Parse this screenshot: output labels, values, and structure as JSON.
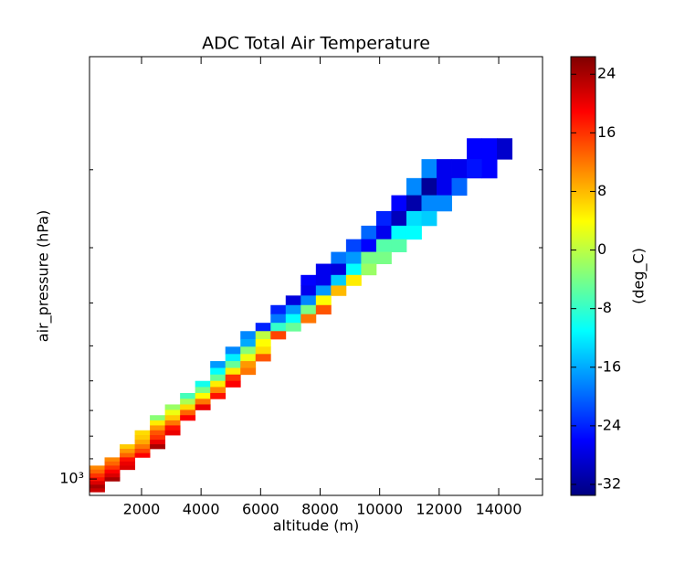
{
  "chart_data": {
    "type": "hist2d",
    "title": "ADC Total Air Temperature",
    "xlabel": "altitude (m)",
    "ylabel": "air_pressure (hPa)",
    "colorbar_label": "(deg_C)",
    "colormap": "jet",
    "clim": [
      -33.5,
      26.4
    ],
    "cticks": [
      -32,
      -24,
      -16,
      -8,
      0,
      8,
      16,
      24
    ],
    "xlim": [
      252,
      15472
    ],
    "xticks": [
      2000,
      4000,
      6000,
      8000,
      10000,
      12000,
      14000
    ],
    "ylim": [
      1089,
      111
    ],
    "yscale": "log",
    "yticks": [
      {
        "value": 1000,
        "label": "10³"
      }
    ],
    "yminorticks": [
      900,
      800,
      700,
      600,
      500,
      400,
      300,
      200
    ],
    "cell_size": [
      507,
      19.56
    ],
    "cells": [
      [
        13180.5,
        179.5,
        -26
      ],
      [
        13687.5,
        179.5,
        -26
      ],
      [
        14194.5,
        179.5,
        -29
      ],
      [
        11659.5,
        199,
        -18
      ],
      [
        12166.5,
        199,
        -27
      ],
      [
        12673.5,
        199,
        -27
      ],
      [
        13180.5,
        199,
        -25
      ],
      [
        13687.5,
        199,
        -26
      ],
      [
        11152.5,
        218.6,
        -18
      ],
      [
        11659.5,
        218.6,
        -32
      ],
      [
        12166.5,
        218.6,
        -27
      ],
      [
        12673.5,
        218.6,
        -20
      ],
      [
        10645.5,
        238.1,
        -26
      ],
      [
        11152.5,
        238.1,
        -31
      ],
      [
        11659.5,
        238.1,
        -18
      ],
      [
        12166.5,
        238.1,
        -18
      ],
      [
        10138.5,
        257.7,
        -24
      ],
      [
        10645.5,
        257.7,
        -30
      ],
      [
        11152.5,
        257.7,
        -13
      ],
      [
        11659.5,
        257.7,
        -14
      ],
      [
        9631.5,
        277.3,
        -20
      ],
      [
        10138.5,
        277.3,
        -27
      ],
      [
        10645.5,
        277.3,
        -11
      ],
      [
        11152.5,
        277.3,
        -11
      ],
      [
        9124.5,
        296.8,
        -22
      ],
      [
        9631.5,
        296.8,
        -26
      ],
      [
        10138.5,
        296.8,
        -6
      ],
      [
        10645.5,
        296.8,
        -6
      ],
      [
        8617.5,
        316.4,
        -19
      ],
      [
        9124.5,
        316.4,
        -17
      ],
      [
        9631.5,
        316.4,
        -4
      ],
      [
        10138.5,
        316.4,
        -4
      ],
      [
        8110.5,
        335.9,
        -27
      ],
      [
        8617.5,
        335.9,
        -28
      ],
      [
        9124.5,
        335.9,
        -11
      ],
      [
        9631.5,
        335.9,
        -2
      ],
      [
        7603.5,
        355.5,
        -26
      ],
      [
        8110.5,
        355.5,
        -27
      ],
      [
        8617.5,
        355.5,
        -14
      ],
      [
        9124.5,
        355.5,
        5
      ],
      [
        7603.5,
        375.1,
        -27
      ],
      [
        8110.5,
        375.1,
        -17
      ],
      [
        8617.5,
        375.1,
        8
      ],
      [
        7096.5,
        394.6,
        -28
      ],
      [
        7603.5,
        394.6,
        -18
      ],
      [
        8110.5,
        394.6,
        4
      ],
      [
        6589.5,
        414.2,
        -24
      ],
      [
        7096.5,
        414.2,
        -17
      ],
      [
        7603.5,
        414.2,
        -4
      ],
      [
        8110.5,
        414.2,
        14
      ],
      [
        6589.5,
        433.7,
        -19
      ],
      [
        7096.5,
        433.7,
        -11
      ],
      [
        7603.5,
        433.7,
        12
      ],
      [
        6082.5,
        453.3,
        -24
      ],
      [
        6589.5,
        453.3,
        -8
      ],
      [
        7096.5,
        453.3,
        -5
      ],
      [
        5575.5,
        472.9,
        -18
      ],
      [
        6082.5,
        472.9,
        0
      ],
      [
        6589.5,
        472.9,
        15
      ],
      [
        5575.5,
        492.4,
        -16
      ],
      [
        6082.5,
        492.4,
        4
      ],
      [
        5068.5,
        512,
        -18
      ],
      [
        5575.5,
        512,
        -3
      ],
      [
        6082.5,
        512,
        6
      ],
      [
        5068.5,
        531.5,
        -12
      ],
      [
        5575.5,
        531.5,
        3
      ],
      [
        6082.5,
        531.5,
        14
      ],
      [
        4561.5,
        551.1,
        -17
      ],
      [
        5068.5,
        551.1,
        -5
      ],
      [
        5575.5,
        551.1,
        10
      ],
      [
        4561.5,
        570.7,
        -11
      ],
      [
        5068.5,
        570.7,
        5
      ],
      [
        5575.5,
        570.7,
        12
      ],
      [
        4561.5,
        590.2,
        -5
      ],
      [
        5068.5,
        590.2,
        16
      ],
      [
        4054.5,
        609.8,
        -10
      ],
      [
        4561.5,
        609.8,
        5
      ],
      [
        5068.5,
        609.8,
        19
      ],
      [
        4054.5,
        629.3,
        -4
      ],
      [
        4561.5,
        629.3,
        11
      ],
      [
        3547.5,
        648.9,
        -7
      ],
      [
        4054.5,
        648.9,
        4
      ],
      [
        4561.5,
        648.9,
        18
      ],
      [
        3547.5,
        668.5,
        -1
      ],
      [
        4054.5,
        668.5,
        12
      ],
      [
        3040.5,
        688,
        -2
      ],
      [
        3547.5,
        688,
        6
      ],
      [
        4054.5,
        688,
        20
      ],
      [
        3040.5,
        707.6,
        3
      ],
      [
        3547.5,
        707.6,
        13
      ],
      [
        2533.5,
        727.1,
        -3
      ],
      [
        3040.5,
        727.1,
        7
      ],
      [
        3547.5,
        727.1,
        19
      ],
      [
        2533.5,
        746.7,
        5
      ],
      [
        3040.5,
        746.7,
        12
      ],
      [
        2533.5,
        766.3,
        10
      ],
      [
        3040.5,
        766.3,
        18
      ],
      [
        2026.5,
        785.8,
        6
      ],
      [
        2533.5,
        785.8,
        14
      ],
      [
        3040.5,
        785.8,
        20
      ],
      [
        2026.5,
        805.4,
        7
      ],
      [
        2533.5,
        805.4,
        16
      ],
      [
        2026.5,
        824.9,
        9
      ],
      [
        2533.5,
        824.9,
        20
      ],
      [
        1519.5,
        844.5,
        7
      ],
      [
        2026.5,
        844.5,
        12
      ],
      [
        2533.5,
        844.5,
        24
      ],
      [
        1519.5,
        864.1,
        10
      ],
      [
        2026.5,
        864.1,
        15
      ],
      [
        1519.5,
        883.6,
        13
      ],
      [
        2026.5,
        883.6,
        19
      ],
      [
        1012.5,
        903.2,
        11
      ],
      [
        1519.5,
        903.2,
        18
      ],
      [
        1012.5,
        922.7,
        13
      ],
      [
        1519.5,
        922.7,
        20
      ],
      [
        505.5,
        942.3,
        11
      ],
      [
        1012.5,
        942.3,
        16
      ],
      [
        1519.5,
        942.3,
        21
      ],
      [
        505.5,
        961.9,
        13
      ],
      [
        1012.5,
        961.9,
        19
      ],
      [
        505.5,
        981.4,
        16
      ],
      [
        1012.5,
        981.4,
        21
      ],
      [
        505.5,
        1001,
        18
      ],
      [
        1012.5,
        1001,
        24
      ],
      [
        505.5,
        1020.5,
        21
      ],
      [
        505.5,
        1040.1,
        24
      ],
      [
        505.5,
        1059.7,
        22
      ]
    ]
  }
}
